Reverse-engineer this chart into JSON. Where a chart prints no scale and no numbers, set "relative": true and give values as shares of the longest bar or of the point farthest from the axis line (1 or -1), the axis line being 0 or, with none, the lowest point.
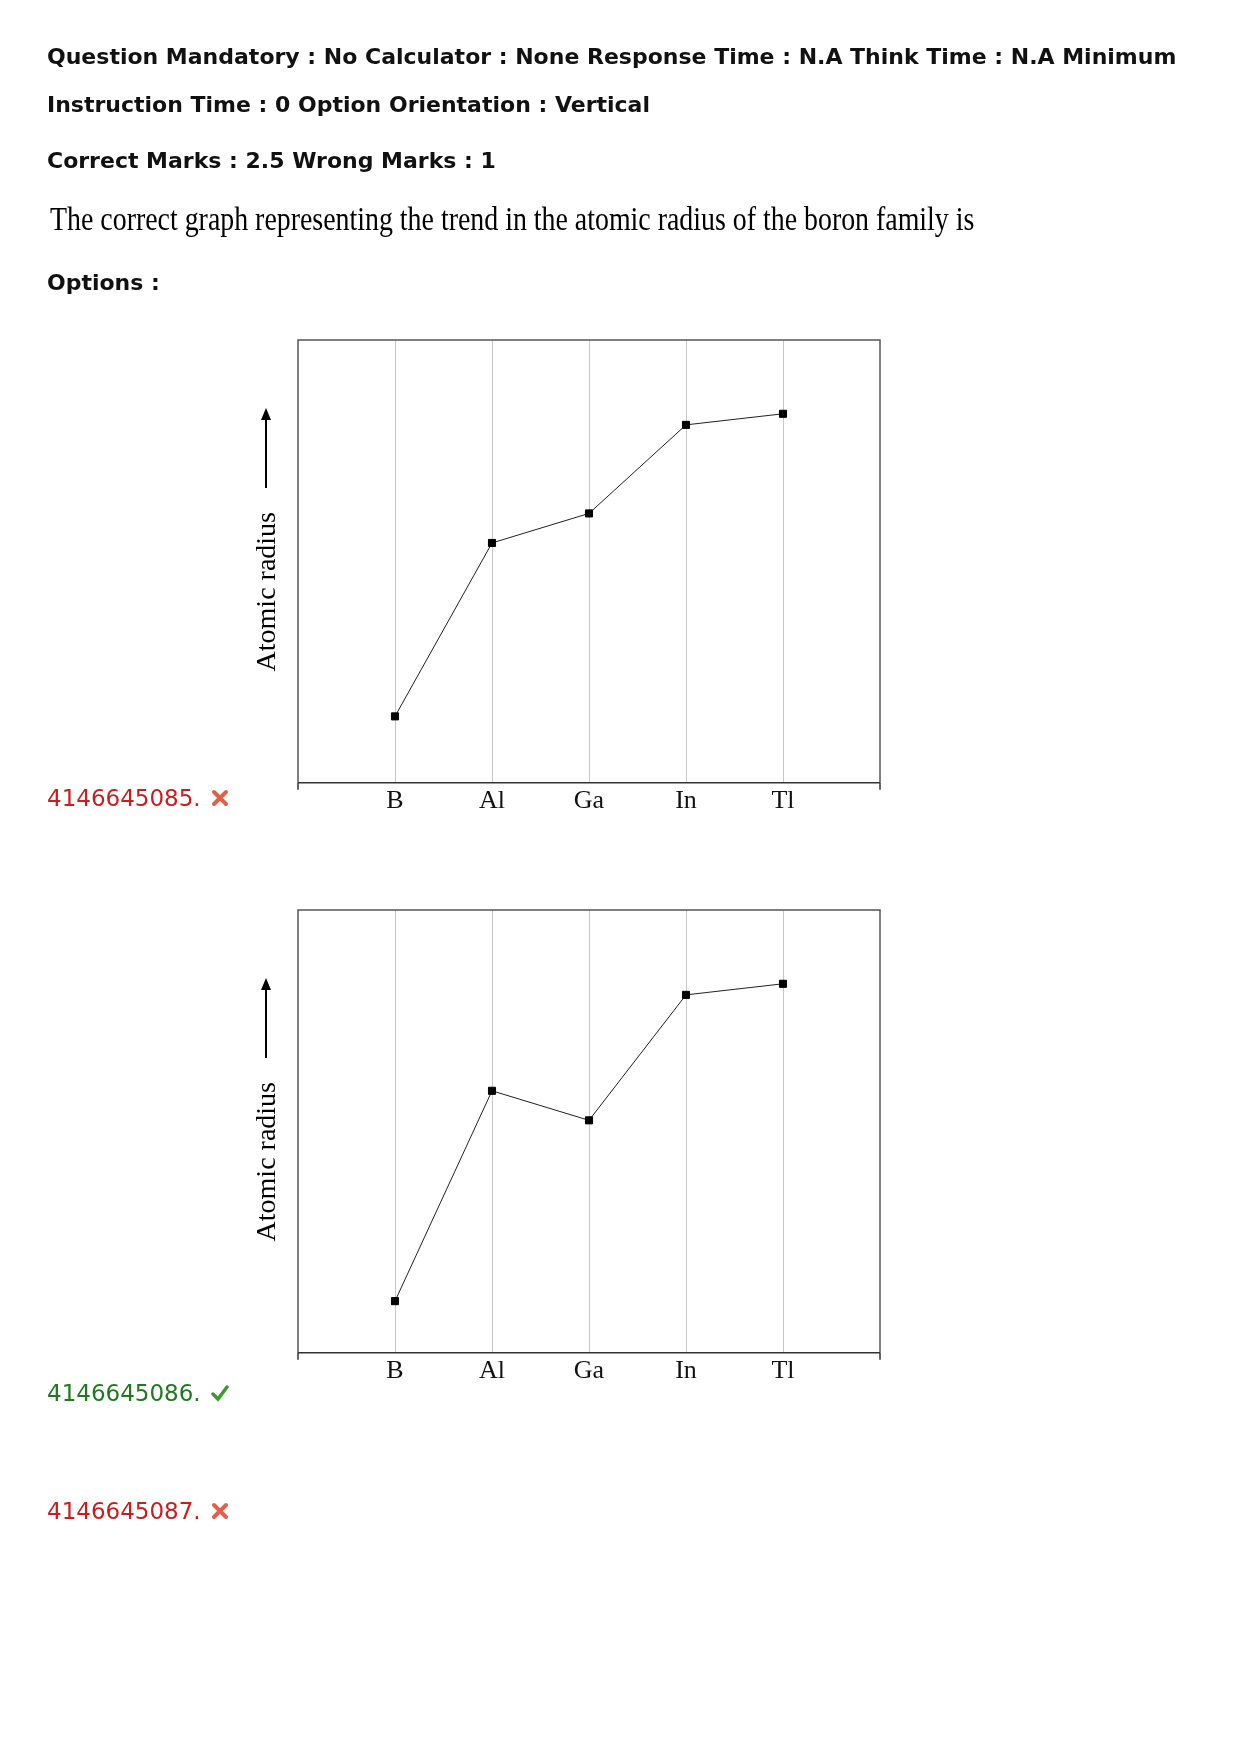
{
  "chart_data": [
    {
      "type": "other",
      "title": "The correct graph representing the trend in the atomic radius of the boron family is",
      "annotations": [
        "Question Mandatory : No Calculator : None Response Time : N.A Think Time : N.A Minimum",
        "Instruction Time : 0 Option Orientation : Vertical",
        "Correct Marks : 2.5 Wrong Marks : 1",
        "Options :"
      ]
    },
    {
      "type": "line",
      "relative": true,
      "ylabel": "Atomic radius",
      "categories": [
        "B",
        "Al",
        "Ga",
        "In",
        "Tl"
      ],
      "grid": "x",
      "marker": "square",
      "legend": false,
      "annotations": [
        "4146645085."
      ],
      "series": [
        {
          "color": "#222222",
          "values": [
            0.18,
            0.65,
            0.73,
            0.97,
            1
          ]
        }
      ]
    },
    {
      "type": "line",
      "relative": true,
      "ylabel": "Atomic radius",
      "categories": [
        "B",
        "Al",
        "Ga",
        "In",
        "Tl"
      ],
      "grid": "x",
      "marker": "square",
      "legend": false,
      "annotations": [
        "4146645086.",
        "4146645087."
      ],
      "series": [
        {
          "color": "#222222",
          "values": [
            0.14,
            0.71,
            0.63,
            0.97,
            1
          ]
        }
      ]
    }
  ]
}
